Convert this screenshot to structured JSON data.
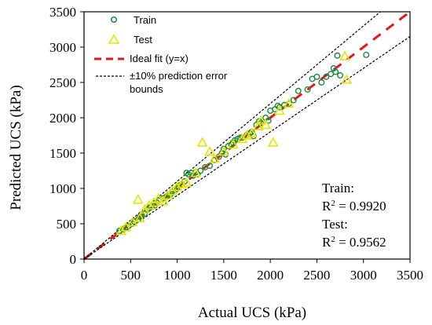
{
  "chart_data": {
    "type": "scatter",
    "xlabel": "Actual UCS (kPa)",
    "ylabel": "Predicted UCS (kPa)",
    "xlim": [
      0,
      3500
    ],
    "ylim": [
      0,
      3500
    ],
    "xticks": [
      0,
      500,
      1000,
      1500,
      2000,
      2500,
      3000,
      3500
    ],
    "yticks": [
      0,
      500,
      1000,
      1500,
      2000,
      2500,
      3000,
      3500
    ],
    "grid": false,
    "legend_position": "top-left",
    "legend": {
      "train": "Train",
      "test": "Test",
      "ideal": "Ideal fit (y=x)",
      "bounds_line1": "±10% prediction error",
      "bounds_line2": "bounds"
    },
    "annotations": {
      "train_label": "Train:",
      "train_r2": "R",
      "train_r2_sup": "2",
      "train_r2_value": " = 0.9920",
      "test_label": "Test:",
      "test_r2": "R",
      "test_r2_sup": "2",
      "test_r2_value": " = 0.9562"
    },
    "colors": {
      "train": "#1a8a3c",
      "test": "#f2ee1c",
      "test_edge": "#e8e400",
      "ideal": "#e8151b",
      "bounds": "#000000"
    },
    "series": [
      {
        "name": "Train",
        "marker": "circle",
        "points": [
          [
            380,
            400
          ],
          [
            420,
            420
          ],
          [
            450,
            440
          ],
          [
            480,
            470
          ],
          [
            520,
            500
          ],
          [
            540,
            530
          ],
          [
            580,
            560
          ],
          [
            600,
            600
          ],
          [
            620,
            620
          ],
          [
            650,
            640
          ],
          [
            680,
            700
          ],
          [
            700,
            720
          ],
          [
            720,
            740
          ],
          [
            760,
            760
          ],
          [
            780,
            800
          ],
          [
            800,
            830
          ],
          [
            850,
            860
          ],
          [
            880,
            880
          ],
          [
            900,
            900
          ],
          [
            930,
            920
          ],
          [
            950,
            960
          ],
          [
            980,
            980
          ],
          [
            1000,
            1000
          ],
          [
            1020,
            1040
          ],
          [
            1050,
            1060
          ],
          [
            1080,
            1100
          ],
          [
            1100,
            1220
          ],
          [
            1120,
            1200
          ],
          [
            1150,
            1220
          ],
          [
            1170,
            1180
          ],
          [
            1200,
            1230
          ],
          [
            1220,
            1200
          ],
          [
            1250,
            1250
          ],
          [
            1300,
            1300
          ],
          [
            1350,
            1320
          ],
          [
            1400,
            1400
          ],
          [
            1450,
            1450
          ],
          [
            1480,
            1500
          ],
          [
            1500,
            1560
          ],
          [
            1520,
            1480
          ],
          [
            1550,
            1600
          ],
          [
            1580,
            1620
          ],
          [
            1600,
            1650
          ],
          [
            1620,
            1680
          ],
          [
            1650,
            1700
          ],
          [
            1680,
            1720
          ],
          [
            1700,
            1720
          ],
          [
            1750,
            1760
          ],
          [
            1780,
            1780
          ],
          [
            1800,
            1800
          ],
          [
            1820,
            1740
          ],
          [
            1850,
            1900
          ],
          [
            1880,
            1950
          ],
          [
            1900,
            1920
          ],
          [
            1950,
            2000
          ],
          [
            1980,
            1960
          ],
          [
            2000,
            2100
          ],
          [
            2050,
            2120
          ],
          [
            2080,
            2170
          ],
          [
            2100,
            2150
          ],
          [
            2150,
            2180
          ],
          [
            2200,
            2200
          ],
          [
            2250,
            2250
          ],
          [
            2300,
            2380
          ],
          [
            2400,
            2400
          ],
          [
            2450,
            2550
          ],
          [
            2500,
            2580
          ],
          [
            2550,
            2500
          ],
          [
            2600,
            2580
          ],
          [
            2650,
            2620
          ],
          [
            2680,
            2700
          ],
          [
            2700,
            2650
          ],
          [
            2720,
            2880
          ],
          [
            2750,
            2600
          ],
          [
            3030,
            2890
          ]
        ]
      },
      {
        "name": "Test",
        "marker": "triangle",
        "points": [
          [
            400,
            400
          ],
          [
            450,
            450
          ],
          [
            520,
            520
          ],
          [
            580,
            840
          ],
          [
            600,
            580
          ],
          [
            650,
            700
          ],
          [
            700,
            760
          ],
          [
            750,
            800
          ],
          [
            800,
            850
          ],
          [
            850,
            820
          ],
          [
            900,
            900
          ],
          [
            950,
            960
          ],
          [
            1000,
            1020
          ],
          [
            1050,
            1060
          ],
          [
            1100,
            1080
          ],
          [
            1200,
            1220
          ],
          [
            1270,
            1650
          ],
          [
            1350,
            1520
          ],
          [
            1400,
            1420
          ],
          [
            1500,
            1520
          ],
          [
            1600,
            1620
          ],
          [
            1700,
            1700
          ],
          [
            1750,
            1750
          ],
          [
            1800,
            1780
          ],
          [
            1870,
            1880
          ],
          [
            1900,
            1960
          ],
          [
            1950,
            1900
          ],
          [
            2030,
            1650
          ],
          [
            2100,
            2100
          ],
          [
            2200,
            2200
          ],
          [
            2800,
            2870
          ],
          [
            2820,
            2540
          ]
        ]
      }
    ],
    "lines": [
      {
        "name": "Ideal fit (y=x)",
        "points": [
          [
            0,
            0
          ],
          [
            3500,
            3500
          ]
        ]
      },
      {
        "name": "+10%",
        "points": [
          [
            0,
            0
          ],
          [
            3182,
            3500
          ]
        ]
      },
      {
        "name": "-10%",
        "points": [
          [
            0,
            0
          ],
          [
            3500,
            3150
          ]
        ]
      }
    ]
  }
}
